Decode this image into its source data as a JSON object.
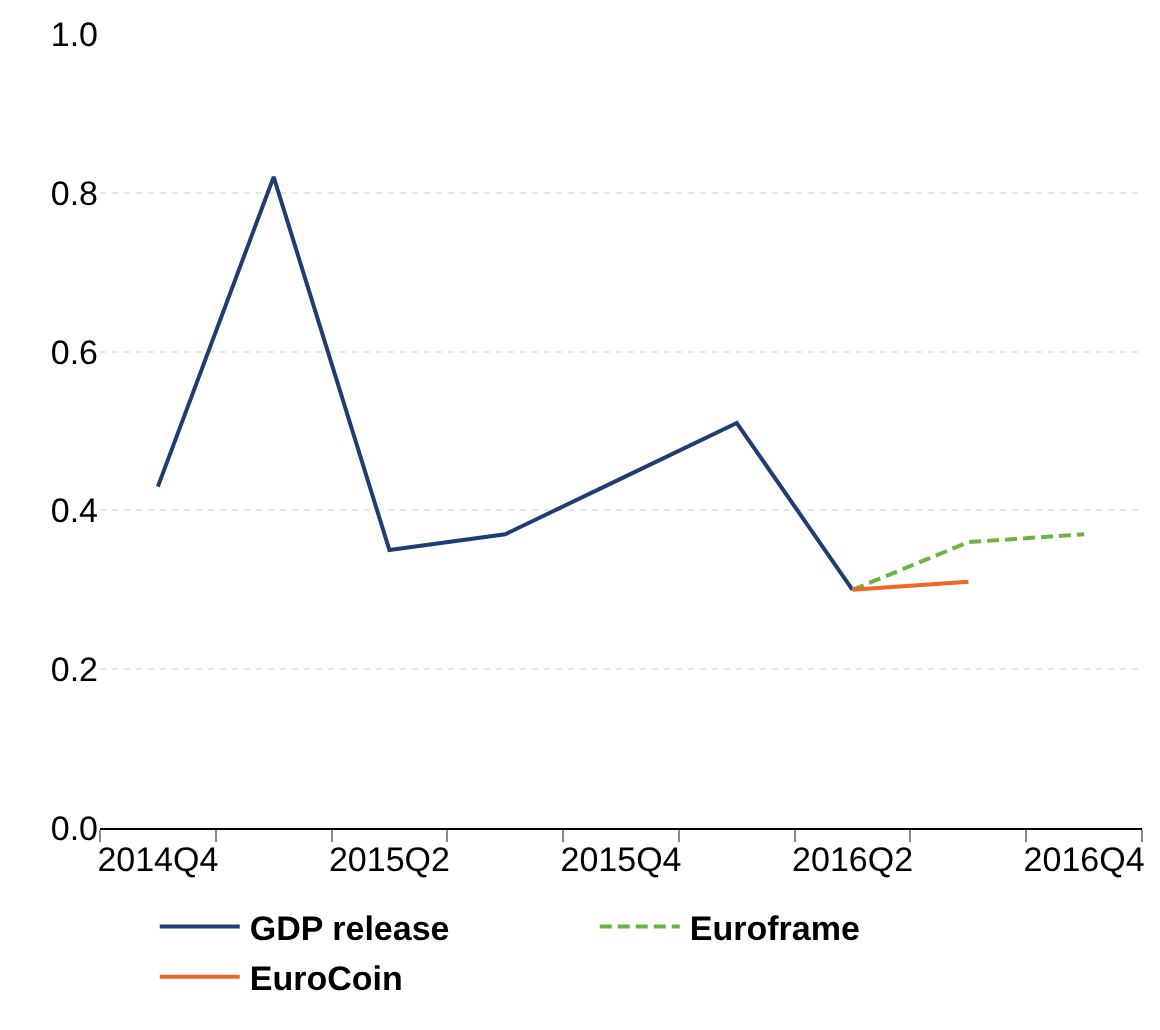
{
  "chart_data": {
    "type": "line",
    "categories": [
      "2014Q4",
      null,
      "2015Q2",
      null,
      "2015Q4",
      null,
      "2016Q2",
      null,
      "2016Q4"
    ],
    "series": [
      {
        "name": "GDP release",
        "color": "#1f3d73",
        "line_style": "solid",
        "values": [
          0.43,
          0.82,
          0.35,
          0.37,
          0.44,
          0.51,
          0.3,
          null,
          null
        ]
      },
      {
        "name": "Euroframe",
        "color": "#6cb33f",
        "line_style": "dashed",
        "values": [
          null,
          null,
          null,
          null,
          null,
          null,
          0.3,
          0.36,
          0.37
        ]
      },
      {
        "name": "EuroCoin",
        "color": "#f26522",
        "line_style": "solid",
        "values": [
          null,
          null,
          null,
          null,
          null,
          null,
          0.3,
          0.31,
          null
        ]
      }
    ],
    "ylim": [
      0,
      1
    ],
    "yticks": [
      {
        "value": 0,
        "label": "0.0"
      },
      {
        "value": 0.2,
        "label": "0.2"
      },
      {
        "value": 0.4,
        "label": "0.4"
      },
      {
        "value": 0.6,
        "label": "0.6"
      },
      {
        "value": 0.8,
        "label": "0.8"
      },
      {
        "value": 1,
        "label": "1.0"
      }
    ],
    "grid": "y",
    "legend": "bottom",
    "marker": "none"
  }
}
